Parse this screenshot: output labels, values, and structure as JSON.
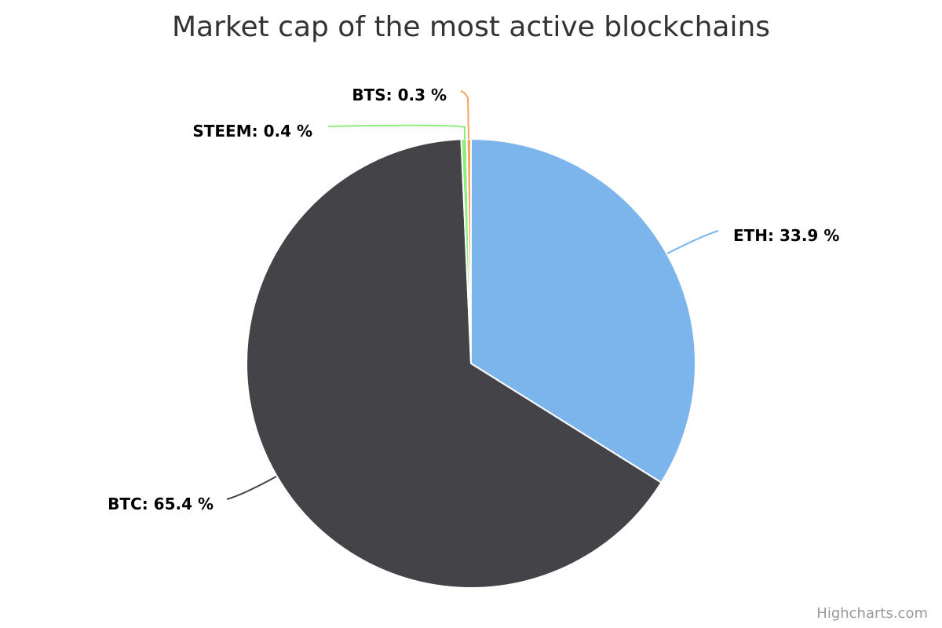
{
  "chart_data": {
    "type": "pie",
    "title": "Market cap of the most active blockchains",
    "slices": [
      {
        "name": "ETH",
        "value": 33.9,
        "label": "ETH: 33.9 %",
        "color": "#7cb5ec"
      },
      {
        "name": "BTC",
        "value": 65.4,
        "label": "BTC: 65.4 %",
        "color": "#434348"
      },
      {
        "name": "STEEM",
        "value": 0.4,
        "label": "STEEM: 0.4 %",
        "color": "#90ed7d"
      },
      {
        "name": "BTS",
        "value": 0.3,
        "label": "BTS: 0.3 %",
        "color": "#f7a35c"
      }
    ],
    "legend": "none",
    "start": "top",
    "direction": "clockwise"
  },
  "credits": "Highcharts.com"
}
